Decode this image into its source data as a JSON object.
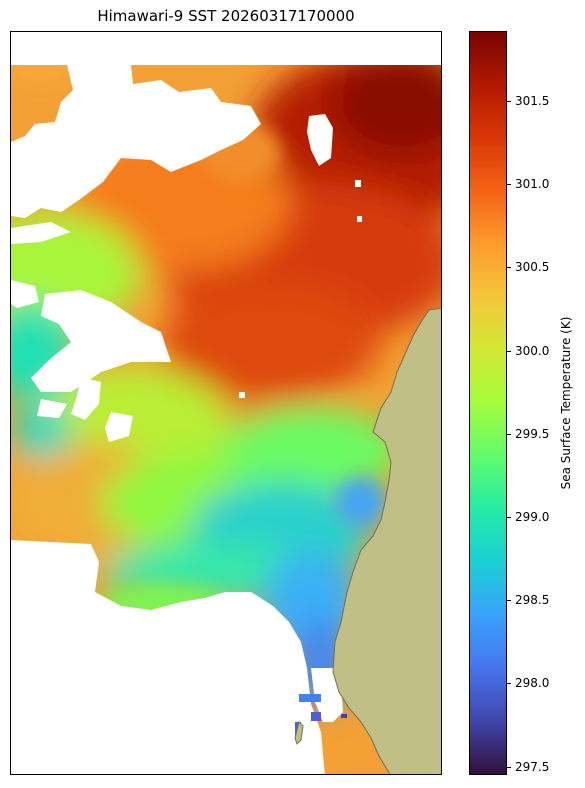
{
  "title": "Himawari-9 SST 20260317170000",
  "colorbar": {
    "label": "Sea Surface Temperature (K)",
    "min": 297.45,
    "max": 301.92,
    "ticks": [
      "297.5",
      "298.0",
      "298.5",
      "299.0",
      "299.5",
      "300.0",
      "300.5",
      "301.0",
      "301.5"
    ],
    "colors": [
      "#30123b",
      "#4145ab",
      "#4675ed",
      "#39a2fc",
      "#1bcfd4",
      "#24eca6",
      "#61fc6c",
      "#a4fc3b",
      "#d1e834",
      "#f3c63a",
      "#fe9b2d",
      "#f36315",
      "#d93806",
      "#b11901",
      "#7a0402"
    ]
  },
  "map": {
    "land_color": "#bfbf86",
    "land_edge_color": "#6f6f5a"
  }
}
